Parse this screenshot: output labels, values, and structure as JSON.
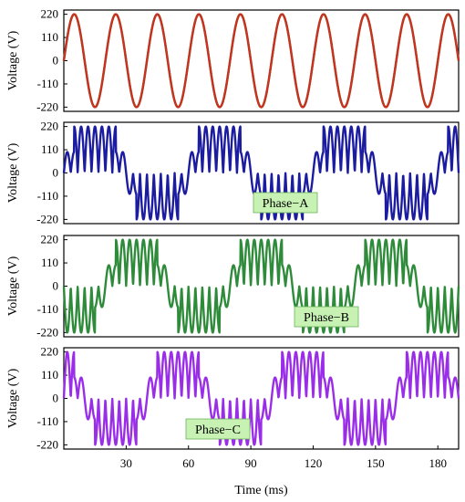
{
  "chart_data": [
    {
      "type": "line",
      "ylabel": "Voltage (V)",
      "ylim": [
        -240,
        240
      ],
      "yticks": [
        "220",
        "110",
        "0",
        "-110",
        "-220"
      ],
      "series": [
        {
          "kind": "sine",
          "color": "#1a7a3a",
          "amplitude": 220,
          "frequency_hz": 50,
          "phase_deg": 0
        },
        {
          "kind": "sine",
          "color": "#c8321e",
          "amplitude": 220,
          "frequency_hz": 50,
          "phase_deg": 0
        }
      ]
    },
    {
      "type": "line",
      "ylabel": "Voltage (V)",
      "ylim": [
        -240,
        240
      ],
      "yticks": [
        "220",
        "110",
        "0",
        "-110",
        "-220"
      ],
      "annotation": "Phase−A",
      "series": [
        {
          "kind": "rectified-sine",
          "color": "#1c1ca0",
          "amplitude": 220,
          "carrier_frequency_hz": 150,
          "envelope_frequency_hz": 16.67,
          "carrier_phase_deg": 0,
          "envelope_phase_deg": 0
        }
      ]
    },
    {
      "type": "line",
      "ylabel": "Voltage (V)",
      "ylim": [
        -240,
        240
      ],
      "yticks": [
        "220",
        "110",
        "0",
        "-110",
        "-220"
      ],
      "annotation": "Phase−B",
      "series": [
        {
          "kind": "rectified-sine",
          "color": "#2e8b3a",
          "amplitude": 220,
          "carrier_frequency_hz": 150,
          "envelope_frequency_hz": 16.67,
          "carrier_phase_deg": 0,
          "envelope_phase_deg": 240
        }
      ]
    },
    {
      "type": "line",
      "ylabel": "Voltage (V)",
      "ylim": [
        -240,
        240
      ],
      "yticks": [
        "220",
        "110",
        "0",
        "-110",
        "-220"
      ],
      "annotation": "Phase−C",
      "series": [
        {
          "kind": "rectified-sine",
          "color": "#9a2ee8",
          "amplitude": 220,
          "carrier_frequency_hz": 150,
          "envelope_frequency_hz": 16.67,
          "carrier_phase_deg": 0,
          "envelope_phase_deg": 120
        }
      ]
    }
  ],
  "x_axis": {
    "label": "Time (ms)",
    "ticks": [
      "30",
      "60",
      "90",
      "120",
      "150",
      "180"
    ],
    "xlim": [
      0,
      190
    ]
  }
}
